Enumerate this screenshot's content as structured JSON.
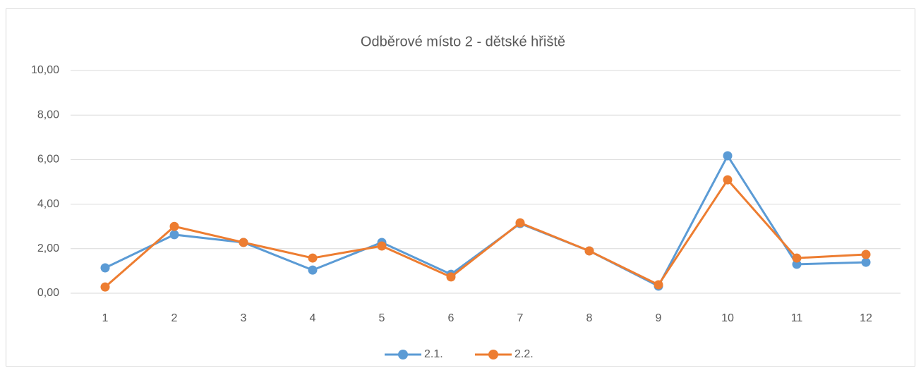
{
  "chart_data": {
    "type": "line",
    "title": "Odběrové místo 2 - dětské hřiště",
    "categories": [
      "1",
      "2",
      "3",
      "4",
      "5",
      "6",
      "7",
      "8",
      "9",
      "10",
      "11",
      "12"
    ],
    "series": [
      {
        "name": "2.1.",
        "color": "#5b9bd5",
        "values": [
          1.14,
          2.63,
          2.28,
          1.04,
          2.28,
          0.85,
          3.13,
          1.9,
          0.32,
          6.17,
          1.3,
          1.39
        ]
      },
      {
        "name": "2.2.",
        "color": "#ed7d31",
        "values": [
          0.28,
          3.0,
          2.28,
          1.58,
          2.12,
          0.73,
          3.16,
          1.9,
          0.38,
          5.09,
          1.58,
          1.74
        ]
      }
    ],
    "ylim": [
      0,
      10
    ],
    "yticks": [
      {
        "value": 0,
        "label": "0,00"
      },
      {
        "value": 2,
        "label": "2,00"
      },
      {
        "value": 4,
        "label": "4,00"
      },
      {
        "value": 6,
        "label": "6,00"
      },
      {
        "value": 8,
        "label": "8,00"
      },
      {
        "value": 10,
        "label": "10,00"
      }
    ],
    "grid": true,
    "legend": "bottom"
  }
}
